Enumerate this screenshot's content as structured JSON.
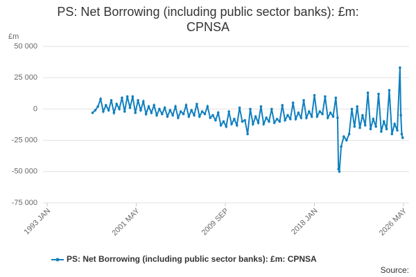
{
  "chart_data": {
    "type": "line",
    "title": "PS: Net Borrowing (including public sector banks): £m: CPNSA",
    "y_label": "£m",
    "source": "Source:",
    "xlim": [
      "1993 JAN",
      "2026 MAY"
    ],
    "xticks": [
      "1993 JAN",
      "2001 MAY",
      "2009 SEP",
      "2018 JAN",
      "2026 MAY"
    ],
    "ylim": [
      -75000,
      50000
    ],
    "yticks": [
      {
        "value": -75000,
        "label": "-75 000"
      },
      {
        "value": -50000,
        "label": "-50 000"
      },
      {
        "value": -25000,
        "label": "-25 000"
      },
      0,
      {
        "value": 25000,
        "label": "25 000"
      },
      {
        "value": 50000,
        "label": "50 000"
      }
    ],
    "grid": true,
    "x": [
      "1997 APR",
      "1997 JUL",
      "1997 OCT",
      "1998 JAN",
      "1998 APR",
      "1998 JUL",
      "1998 OCT",
      "1999 JAN",
      "1999 APR",
      "1999 JUL",
      "1999 OCT",
      "2000 JAN",
      "2000 APR",
      "2000 JUL",
      "2000 OCT",
      "2001 JAN",
      "2001 APR",
      "2001 JUL",
      "2001 OCT",
      "2002 JAN",
      "2002 APR",
      "2002 JUL",
      "2002 OCT",
      "2003 JAN",
      "2003 APR",
      "2003 JUL",
      "2003 OCT",
      "2004 JAN",
      "2004 APR",
      "2004 JUL",
      "2004 OCT",
      "2005 JAN",
      "2005 APR",
      "2005 JUL",
      "2005 OCT",
      "2006 JAN",
      "2006 APR",
      "2006 JUL",
      "2006 OCT",
      "2007 JAN",
      "2007 APR",
      "2007 JUL",
      "2007 OCT",
      "2008 JAN",
      "2008 APR",
      "2008 JUL",
      "2008 OCT",
      "2009 JAN",
      "2009 APR",
      "2009 JUL",
      "2009 OCT",
      "2010 JAN",
      "2010 APR",
      "2010 JUL",
      "2010 OCT",
      "2011 JAN",
      "2011 APR",
      "2011 JUL",
      "2011 OCT",
      "2012 JAN",
      "2012 APR",
      "2012 JUL",
      "2012 OCT",
      "2013 JAN",
      "2013 APR",
      "2013 JUL",
      "2013 OCT",
      "2014 JAN",
      "2014 APR",
      "2014 JUL",
      "2014 OCT",
      "2015 JAN",
      "2015 APR",
      "2015 JUL",
      "2015 OCT",
      "2016 JAN",
      "2016 APR",
      "2016 JUL",
      "2016 OCT",
      "2017 JAN",
      "2017 APR",
      "2017 JUL",
      "2017 OCT",
      "2018 JAN",
      "2018 APR",
      "2018 JUL",
      "2018 OCT",
      "2019 JAN",
      "2019 APR",
      "2019 JUL",
      "2019 OCT",
      "2020 JAN",
      "2020 MAR",
      "2020 APR",
      "2020 MAY",
      "2020 JUL",
      "2020 OCT",
      "2021 JAN",
      "2021 APR",
      "2021 JUL",
      "2021 OCT",
      "2022 JAN",
      "2022 APR",
      "2022 JUL",
      "2022 OCT",
      "2023 JAN",
      "2023 APR",
      "2023 JUL",
      "2023 OCT",
      "2024 JAN",
      "2024 APR",
      "2024 JUL",
      "2024 OCT",
      "2025 JAN",
      "2025 APR",
      "2025 JUL",
      "2025 OCT",
      "2026 JAN",
      "2026 FEB",
      "2026 MAR",
      "2026 APR"
    ],
    "series": [
      {
        "name": "PS: Net Borrowing (including public sector banks): £m: CPNSA",
        "color": "#0f7fbf",
        "values": [
          -3000,
          -1000,
          2000,
          8000,
          -2000,
          3000,
          -1000,
          7000,
          -3000,
          4000,
          0,
          9000,
          -2000,
          10000,
          1000,
          10000,
          -3000,
          7000,
          -1000,
          6000,
          -4000,
          2000,
          -3000,
          3000,
          -5000,
          0,
          -4000,
          1000,
          -6000,
          -1000,
          -5000,
          2000,
          -7000,
          -2000,
          -4000,
          3000,
          -6000,
          -1000,
          -5000,
          4000,
          -6000,
          -2000,
          -4000,
          2000,
          -7000,
          -5000,
          -9000,
          -3000,
          -13000,
          -10000,
          -14000,
          -2000,
          -12000,
          -8000,
          -13000,
          1000,
          -10000,
          -9000,
          -20000,
          0,
          -12000,
          -6000,
          -11000,
          2000,
          -12000,
          -7000,
          -10000,
          0,
          -11000,
          -8000,
          -10000,
          3000,
          -9000,
          -5000,
          -8000,
          5000,
          -8000,
          -3000,
          -7000,
          7000,
          -7000,
          -2000,
          -6000,
          11000,
          -6000,
          -2000,
          -4000,
          10000,
          -7000,
          -3000,
          -6000,
          9000,
          -7000,
          -48000,
          -50000,
          -30000,
          -22000,
          -25000,
          -20000,
          0,
          -14000,
          2000,
          -15000,
          -5000,
          -13000,
          13000,
          -16000,
          -8000,
          -14000,
          12000,
          -18000,
          -10000,
          -16000,
          15000,
          -20000,
          -12000,
          -17000,
          33000,
          -5000,
          -20000,
          -23000
        ]
      }
    ]
  }
}
